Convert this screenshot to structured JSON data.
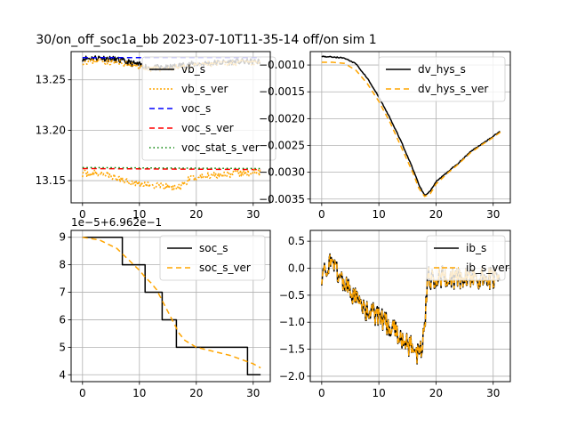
{
  "figure_title": "30/on_off_soc1a_bb   2023-07-10T11-35-14 off/on sim 1",
  "colors": {
    "black": "#000000",
    "orange": "#ffa500",
    "blue": "#0000ff",
    "red": "#ff0000",
    "green": "#008000"
  },
  "chart_data": [
    {
      "type": "line",
      "id": "p1",
      "xlim": [
        -2,
        33
      ],
      "ylim": [
        13.128,
        13.278
      ],
      "xticks": [
        {
          "v": 0,
          "label": "0"
        },
        {
          "v": 10,
          "label": "10"
        },
        {
          "v": 20,
          "label": "20"
        },
        {
          "v": 30,
          "label": "30"
        }
      ],
      "yticks": [
        {
          "v": 13.15,
          "label": "13.15"
        },
        {
          "v": 13.2,
          "label": "13.20"
        },
        {
          "v": 13.25,
          "label": "13.25"
        }
      ],
      "grid": true,
      "legend": {
        "placement": "upper-right"
      },
      "series": [
        {
          "name": "vb_s",
          "color": "#000000",
          "dash": "",
          "noise": 0.003,
          "seed": 11,
          "points": [
            [
              0,
              13.271
            ],
            [
              3,
              13.272
            ],
            [
              6,
              13.27
            ],
            [
              9,
              13.266
            ],
            [
              12,
              13.262
            ],
            [
              15,
              13.262
            ],
            [
              18,
              13.265
            ],
            [
              21,
              13.266
            ],
            [
              24,
              13.267
            ],
            [
              27,
              13.268
            ],
            [
              31.3,
              13.268
            ]
          ]
        },
        {
          "name": "vb_s_ver",
          "color": "#ffa500",
          "dash": "2,2",
          "noise": 0.003,
          "seed": 23,
          "points": [
            [
              0,
              13.268
            ],
            [
              3,
              13.269
            ],
            [
              6,
              13.267
            ],
            [
              9,
              13.264
            ],
            [
              12,
              13.261
            ],
            [
              15,
              13.261
            ],
            [
              18,
              13.263
            ],
            [
              21,
              13.265
            ],
            [
              24,
              13.266
            ],
            [
              27,
              13.267
            ],
            [
              31.3,
              13.267
            ]
          ]
        },
        {
          "name": "voc_s",
          "color": "#0000ff",
          "dash": "6,4",
          "noise": 0,
          "points": [
            [
              0,
              13.272
            ],
            [
              31.3,
              13.272
            ]
          ]
        },
        {
          "name": "voc_s_ver",
          "color": "#ff0000",
          "dash": "6,4",
          "noise": 0,
          "points": [
            [
              0,
              13.162
            ],
            [
              31.3,
              13.161
            ]
          ]
        },
        {
          "name": "voc_stat_s_ver",
          "color": "#008000",
          "dash": "1.5,3",
          "noise": 0,
          "points": [
            [
              0,
              13.163
            ],
            [
              31.3,
              13.162
            ]
          ]
        },
        {
          "name": "",
          "color": "#ffa500",
          "dash": "2,2",
          "noise": 0.0035,
          "seed": 37,
          "points": [
            [
              0,
              13.157
            ],
            [
              4,
              13.157
            ],
            [
              6,
              13.152
            ],
            [
              10,
              13.147
            ],
            [
              14,
              13.144
            ],
            [
              17,
              13.143
            ],
            [
              19,
              13.152
            ],
            [
              23,
              13.156
            ],
            [
              27,
              13.157
            ],
            [
              31.3,
              13.158
            ]
          ]
        }
      ]
    },
    {
      "type": "line",
      "id": "p2",
      "xlim": [
        -2,
        33
      ],
      "ylim": [
        -0.00357,
        -0.00075
      ],
      "xticks": [
        {
          "v": 0,
          "label": "0"
        },
        {
          "v": 10,
          "label": "10"
        },
        {
          "v": 20,
          "label": "20"
        },
        {
          "v": 30,
          "label": "30"
        }
      ],
      "yticks": [
        {
          "v": -0.0035,
          "label": "−0.0035"
        },
        {
          "v": -0.003,
          "label": "−0.0030"
        },
        {
          "v": -0.0025,
          "label": "−0.0025"
        },
        {
          "v": -0.002,
          "label": "−0.0020"
        },
        {
          "v": -0.0015,
          "label": "−0.0015"
        },
        {
          "v": -0.001,
          "label": "−0.0010"
        }
      ],
      "grid": true,
      "legend": {
        "placement": "upper-right"
      },
      "series": [
        {
          "name": "dv_hys_s",
          "color": "#000000",
          "dash": "",
          "noise": 1e-05,
          "seed": 5,
          "points": [
            [
              0,
              -0.00084
            ],
            [
              2,
              -0.00085
            ],
            [
              4,
              -0.00087
            ],
            [
              6,
              -0.00098
            ],
            [
              8,
              -0.00125
            ],
            [
              10,
              -0.0016
            ],
            [
              12,
              -0.002
            ],
            [
              14,
              -0.00245
            ],
            [
              16,
              -0.00295
            ],
            [
              17,
              -0.00323
            ],
            [
              18,
              -0.00343
            ],
            [
              19,
              -0.00335
            ],
            [
              20,
              -0.00318
            ],
            [
              22,
              -0.003
            ],
            [
              24,
              -0.00282
            ],
            [
              26,
              -0.00262
            ],
            [
              28,
              -0.00247
            ],
            [
              30,
              -0.00233
            ],
            [
              31.3,
              -0.00223
            ]
          ]
        },
        {
          "name": "dv_hys_s_ver",
          "color": "#ffa500",
          "dash": "6,4",
          "noise": 0,
          "points": [
            [
              0,
              -0.00095
            ],
            [
              2,
              -0.00095
            ],
            [
              4,
              -0.00097
            ],
            [
              6,
              -0.0011
            ],
            [
              8,
              -0.00135
            ],
            [
              10,
              -0.00168
            ],
            [
              12,
              -0.00208
            ],
            [
              14,
              -0.00255
            ],
            [
              16,
              -0.00302
            ],
            [
              17,
              -0.0033
            ],
            [
              18,
              -0.00345
            ],
            [
              19,
              -0.0034
            ],
            [
              20,
              -0.00322
            ],
            [
              22,
              -0.00302
            ],
            [
              24,
              -0.00284
            ],
            [
              26,
              -0.00264
            ],
            [
              28,
              -0.00249
            ],
            [
              30,
              -0.00235
            ],
            [
              31.3,
              -0.00225
            ]
          ]
        }
      ]
    },
    {
      "type": "line",
      "id": "p3",
      "xlim": [
        -2,
        33
      ],
      "ylim": [
        3.75,
        9.25
      ],
      "offset_label": "1e−5+6.962e−1",
      "xticks": [
        {
          "v": 0,
          "label": "0"
        },
        {
          "v": 10,
          "label": "10"
        },
        {
          "v": 20,
          "label": "20"
        },
        {
          "v": 30,
          "label": "30"
        }
      ],
      "yticks": [
        {
          "v": 4,
          "label": "4"
        },
        {
          "v": 5,
          "label": "5"
        },
        {
          "v": 6,
          "label": "6"
        },
        {
          "v": 7,
          "label": "7"
        },
        {
          "v": 8,
          "label": "8"
        },
        {
          "v": 9,
          "label": "9"
        }
      ],
      "grid": true,
      "legend": {
        "placement": "upper-right"
      },
      "series": [
        {
          "name": "soc_s",
          "color": "#000000",
          "dash": "",
          "noise": 0,
          "points": [
            [
              0,
              9
            ],
            [
              7,
              9
            ],
            [
              7,
              8
            ],
            [
              11,
              8
            ],
            [
              11,
              7
            ],
            [
              14,
              7
            ],
            [
              14,
              6
            ],
            [
              16.5,
              6
            ],
            [
              16.5,
              5
            ],
            [
              29,
              5
            ],
            [
              29,
              4
            ],
            [
              31.3,
              4
            ]
          ]
        },
        {
          "name": "soc_s_ver",
          "color": "#ffa500",
          "dash": "6,4",
          "noise": 0,
          "points": [
            [
              0,
              9
            ],
            [
              3,
              8.9
            ],
            [
              6,
              8.6
            ],
            [
              8,
              8.2
            ],
            [
              10,
              7.8
            ],
            [
              11,
              7.55
            ],
            [
              12,
              7.35
            ],
            [
              13,
              7.1
            ],
            [
              14,
              6.7
            ],
            [
              15,
              6.3
            ],
            [
              16,
              5.9
            ],
            [
              17,
              5.5
            ],
            [
              18,
              5.25
            ],
            [
              20,
              5.0
            ],
            [
              23,
              4.85
            ],
            [
              26,
              4.7
            ],
            [
              28,
              4.55
            ],
            [
              30,
              4.4
            ],
            [
              31.3,
              4.25
            ]
          ]
        }
      ]
    },
    {
      "type": "line",
      "id": "p4",
      "xlim": [
        -2,
        33
      ],
      "ylim": [
        -2.1,
        0.7
      ],
      "xticks": [
        {
          "v": 0,
          "label": "0"
        },
        {
          "v": 10,
          "label": "10"
        },
        {
          "v": 20,
          "label": "20"
        },
        {
          "v": 30,
          "label": "30"
        }
      ],
      "yticks": [
        {
          "v": -2.0,
          "label": "−2.0"
        },
        {
          "v": -1.5,
          "label": "−1.5"
        },
        {
          "v": -1.0,
          "label": "−1.0"
        },
        {
          "v": -0.5,
          "label": "−0.5"
        },
        {
          "v": 0.0,
          "label": "0.0"
        },
        {
          "v": 0.5,
          "label": "0.5"
        }
      ],
      "grid": true,
      "legend": {
        "placement": "upper-right"
      },
      "series": [
        {
          "name": "ib_s",
          "color": "#000000",
          "dash": "",
          "noise": 0.22,
          "seed": 71,
          "step": 0.12,
          "points": [
            [
              0,
              -0.1
            ],
            [
              2,
              0.1
            ],
            [
              4,
              -0.3
            ],
            [
              6,
              -0.6
            ],
            [
              8,
              -0.8
            ],
            [
              10,
              -0.9
            ],
            [
              12,
              -1.1
            ],
            [
              14,
              -1.3
            ],
            [
              16,
              -1.5
            ],
            [
              17,
              -1.6
            ],
            [
              18,
              -1.2
            ],
            [
              18.5,
              -0.2
            ],
            [
              20,
              -0.15
            ],
            [
              24,
              -0.2
            ],
            [
              28,
              -0.2
            ],
            [
              31.3,
              -0.15
            ]
          ]
        },
        {
          "name": "ib_s_ver",
          "color": "#ffa500",
          "dash": "6,3",
          "noise": 0.2,
          "seed": 71,
          "step": 0.12,
          "points": [
            [
              0,
              -0.1
            ],
            [
              2,
              0.1
            ],
            [
              4,
              -0.3
            ],
            [
              6,
              -0.6
            ],
            [
              8,
              -0.8
            ],
            [
              10,
              -0.9
            ],
            [
              12,
              -1.1
            ],
            [
              14,
              -1.3
            ],
            [
              16,
              -1.5
            ],
            [
              17,
              -1.6
            ],
            [
              18,
              -1.2
            ],
            [
              18.5,
              -0.2
            ],
            [
              20,
              -0.15
            ],
            [
              24,
              -0.2
            ],
            [
              28,
              -0.2
            ],
            [
              31.3,
              -0.15
            ]
          ]
        }
      ]
    }
  ]
}
